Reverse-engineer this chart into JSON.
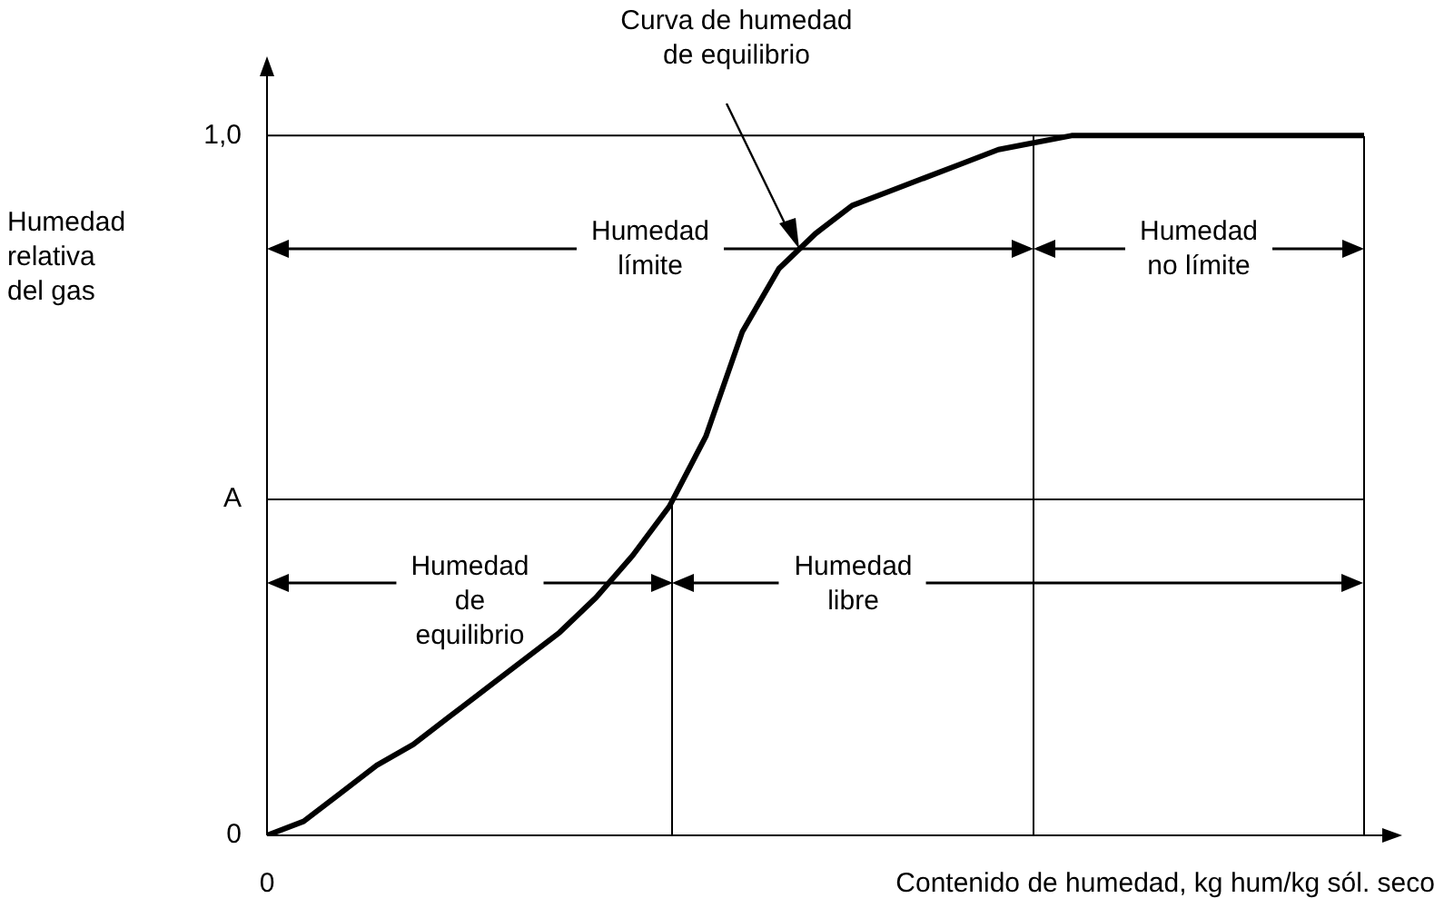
{
  "chart_data": {
    "type": "line",
    "xlabel": "Contenido de humedad, kg hum/kg sól. seco",
    "ylabel": "Humedad\nrelativa\ndel gas",
    "ylim": [
      0,
      1.09
    ],
    "yticks": [
      0,
      {
        "value": 0.48,
        "label": "A"
      },
      {
        "value": 1,
        "label": "1,0"
      }
    ],
    "categories": [
      null,
      null,
      null,
      null,
      null,
      null,
      null,
      null,
      null,
      null,
      null,
      null,
      null,
      null,
      null,
      null,
      null,
      null,
      null,
      null,
      null,
      null,
      null,
      null,
      null,
      null,
      null,
      null,
      null,
      null,
      null
    ],
    "series": [
      {
        "color": "#000000",
        "values": [
          0,
          0.02,
          0.06,
          0.1,
          0.13,
          0.17,
          0.21,
          0.25,
          0.29,
          0.34,
          0.4,
          0.47,
          0.57,
          0.72,
          0.81,
          0.86,
          0.9,
          0.92,
          0.94,
          0.96,
          0.98,
          0.99,
          1.0,
          1.0,
          1.0,
          1.0,
          1.0,
          1.0,
          1.0,
          1.0,
          1.0
        ]
      }
    ],
    "marker": "none",
    "grid": false,
    "legend": false,
    "ref_lines": [
      {
        "axis": "y",
        "value": 0.48
      },
      {
        "axis": "y",
        "value": 1
      }
    ],
    "annotations": [
      "Curva de humedad\nde equilibrio",
      "Humedad\nlímite",
      "Humedad\nno límite",
      "Humedad\nde\nequilibrio",
      "Humedad\nlibre",
      "0"
    ]
  }
}
